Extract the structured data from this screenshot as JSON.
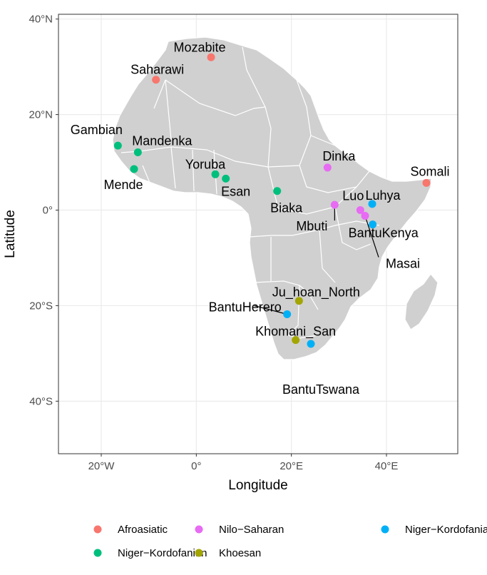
{
  "chart_data": {
    "type": "scatter",
    "title": "",
    "xlabel": "Longitude",
    "ylabel": "Latitude",
    "xlim": [
      -29,
      55
    ],
    "ylim": [
      -51,
      41
    ],
    "x_ticks": [
      {
        "value": -20,
        "label": "20°W"
      },
      {
        "value": 0,
        "label": "0°"
      },
      {
        "value": 20,
        "label": "20°E"
      },
      {
        "value": 40,
        "label": "40°E"
      }
    ],
    "y_ticks": [
      {
        "value": 40,
        "label": "40°N"
      },
      {
        "value": 20,
        "label": "20°N"
      },
      {
        "value": 0,
        "label": "0°"
      },
      {
        "value": -20,
        "label": "20°S"
      },
      {
        "value": -40,
        "label": "40°S"
      }
    ],
    "grid": true,
    "legend_position": "bottom",
    "groups": [
      {
        "name": "Afroasiatic",
        "color": "#F8766D"
      },
      {
        "name": "Khoesan",
        "color": "#A3A500"
      },
      {
        "name": "Niger−Kordofanian",
        "color": "#00BF7D"
      },
      {
        "name": "Niger−Kordofanian−Bantu",
        "color": "#00B0F6"
      },
      {
        "name": "Nilo−Saharan",
        "color": "#E76BF3"
      }
    ],
    "points": [
      {
        "name": "Mozabite",
        "lon": 3.1,
        "lat": 32.0,
        "group": "Afroasiatic"
      },
      {
        "name": "Saharawi",
        "lon": -8.5,
        "lat": 27.3,
        "group": "Afroasiatic"
      },
      {
        "name": "Somali",
        "lon": 48.4,
        "lat": 5.7,
        "group": "Afroasiatic"
      },
      {
        "name": "Gambian",
        "lon": -16.5,
        "lat": 13.5,
        "group": "Niger−Kordofanian"
      },
      {
        "name": "Mandenka",
        "lon": -12.3,
        "lat": 12.1,
        "group": "Niger−Kordofanian"
      },
      {
        "name": "Mende",
        "lon": -13.1,
        "lat": 8.6,
        "group": "Niger−Kordofanian"
      },
      {
        "name": "Yoruba",
        "lon": 4.0,
        "lat": 7.5,
        "group": "Niger−Kordofanian"
      },
      {
        "name": "Esan",
        "lon": 6.2,
        "lat": 6.6,
        "group": "Niger−Kordofanian"
      },
      {
        "name": "Biaka",
        "lon": 17.0,
        "lat": 4.0,
        "group": "Niger−Kordofanian"
      },
      {
        "name": "Dinka",
        "lon": 27.6,
        "lat": 8.9,
        "group": "Nilo−Saharan"
      },
      {
        "name": "Luo",
        "lon": 34.5,
        "lat": 0.0,
        "group": "Nilo−Saharan"
      },
      {
        "name": "Mbuti",
        "lon": 29.1,
        "lat": 1.1,
        "group": "Nilo−Saharan"
      },
      {
        "name": "Masai",
        "lon": 35.5,
        "lat": -1.2,
        "group": "Nilo−Saharan"
      },
      {
        "name": "Luhya",
        "lon": 37.0,
        "lat": 1.3,
        "group": "Niger−Kordofanian−Bantu"
      },
      {
        "name": "BantuKenya",
        "lon": 37.1,
        "lat": -3.0,
        "group": "Niger−Kordofanian−Bantu"
      },
      {
        "name": "Ju_hoan_North",
        "lon": 21.6,
        "lat": -19.0,
        "group": "Khoesan"
      },
      {
        "name": "BantuHerero",
        "lon": 19.1,
        "lat": -21.8,
        "group": "Niger−Kordofanian−Bantu"
      },
      {
        "name": "Khomani_San",
        "lon": 20.9,
        "lat": -27.2,
        "group": "Khoesan"
      },
      {
        "name": "BantuTswana",
        "lon": 24.1,
        "lat": -28.0,
        "group": "Niger−Kordofanian−Bantu"
      }
    ]
  },
  "legend": {
    "items": [
      "Afroasiatic",
      "Niger−Kordofanian",
      "Nilo−Saharan",
      "Khoesan",
      "Niger−Kordofanian−Bantu"
    ]
  },
  "colors": {
    "land": "#D0D0D0",
    "borders": "#FFFFFF",
    "grid": "#EBEBEB",
    "panel_border": "#333333"
  }
}
